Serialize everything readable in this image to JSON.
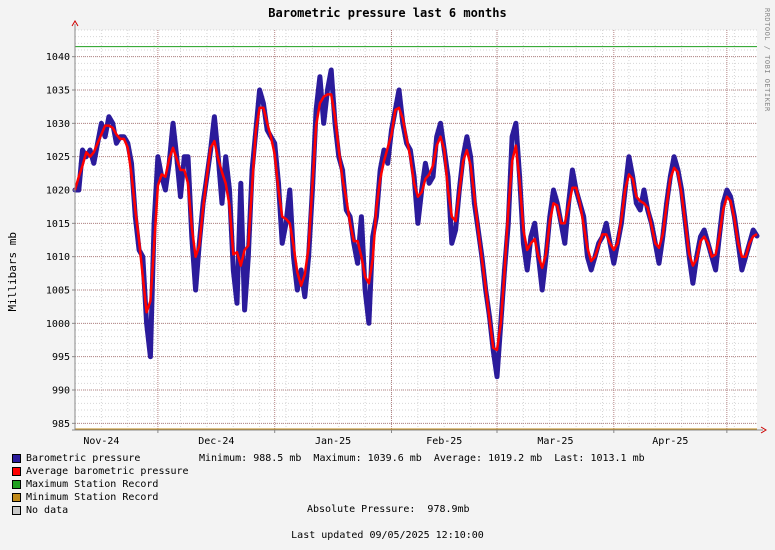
{
  "watermark": "RRDTOOL / TOBI OETIKER",
  "chart_data": {
    "type": "line",
    "title": "Barometric pressure last 6 months",
    "ylabel": "Millibars  mb",
    "ylim": [
      984,
      1044
    ],
    "yticks": [
      985,
      990,
      995,
      1000,
      1005,
      1010,
      1015,
      1020,
      1025,
      1030,
      1035,
      1040
    ],
    "xlabels": [
      "Nov-24",
      "Dec-24",
      "Jan-25",
      "Feb-25",
      "Mar-25",
      "Apr-25"
    ],
    "x_range": [
      "2024-11-09",
      "2025-05-09"
    ],
    "month_starts": [
      "2024-11-01",
      "2024-12-01",
      "2025-01-01",
      "2025-02-01",
      "2025-03-01",
      "2025-04-01",
      "2025-05-01"
    ],
    "grid": true,
    "max_station_record": 1041.5,
    "min_station_record": 984,
    "series": [
      {
        "name": "Barometric pressure",
        "color": "#2b1b9b",
        "points": [
          [
            "2024-11-09",
            1020
          ],
          [
            "2024-11-10",
            1020
          ],
          [
            "2024-11-11",
            1026
          ],
          [
            "2024-11-12",
            1025
          ],
          [
            "2024-11-13",
            1026
          ],
          [
            "2024-11-14",
            1024
          ],
          [
            "2024-11-15",
            1027
          ],
          [
            "2024-11-16",
            1030
          ],
          [
            "2024-11-17",
            1028
          ],
          [
            "2024-11-18",
            1031
          ],
          [
            "2024-11-19",
            1030
          ],
          [
            "2024-11-20",
            1027
          ],
          [
            "2024-11-21",
            1028
          ],
          [
            "2024-11-22",
            1028
          ],
          [
            "2024-11-23",
            1027
          ],
          [
            "2024-11-24",
            1024
          ],
          [
            "2024-11-25",
            1016
          ],
          [
            "2024-11-26",
            1011
          ],
          [
            "2024-11-27",
            1010
          ],
          [
            "2024-11-28",
            1000
          ],
          [
            "2024-11-29",
            995
          ],
          [
            "2024-11-30",
            1015
          ],
          [
            "2024-12-01",
            1025
          ],
          [
            "2024-12-02",
            1022
          ],
          [
            "2024-12-03",
            1020
          ],
          [
            "2024-12-04",
            1024
          ],
          [
            "2024-12-05",
            1030
          ],
          [
            "2024-12-06",
            1025
          ],
          [
            "2024-12-07",
            1019
          ],
          [
            "2024-12-08",
            1025
          ],
          [
            "2024-12-09",
            1025
          ],
          [
            "2024-12-10",
            1013
          ],
          [
            "2024-12-11",
            1005
          ],
          [
            "2024-12-12",
            1012
          ],
          [
            "2024-12-13",
            1018
          ],
          [
            "2024-12-14",
            1022
          ],
          [
            "2024-12-15",
            1026
          ],
          [
            "2024-12-16",
            1031
          ],
          [
            "2024-12-17",
            1025
          ],
          [
            "2024-12-18",
            1018
          ],
          [
            "2024-12-19",
            1025
          ],
          [
            "2024-12-20",
            1020
          ],
          [
            "2024-12-21",
            1008
          ],
          [
            "2024-12-22",
            1003
          ],
          [
            "2024-12-23",
            1021
          ],
          [
            "2024-12-24",
            1002
          ],
          [
            "2024-12-25",
            1010
          ],
          [
            "2024-12-26",
            1023
          ],
          [
            "2024-12-27",
            1029
          ],
          [
            "2024-12-28",
            1035
          ],
          [
            "2024-12-29",
            1033
          ],
          [
            "2024-12-30",
            1029
          ],
          [
            "2024-12-31",
            1028
          ],
          [
            "2025-01-01",
            1027
          ],
          [
            "2025-01-02",
            1021
          ],
          [
            "2025-01-03",
            1012
          ],
          [
            "2025-01-04",
            1015
          ],
          [
            "2025-01-05",
            1020
          ],
          [
            "2025-01-06",
            1010
          ],
          [
            "2025-01-07",
            1005
          ],
          [
            "2025-01-08",
            1008
          ],
          [
            "2025-01-09",
            1004
          ],
          [
            "2025-01-10",
            1010
          ],
          [
            "2025-01-11",
            1020
          ],
          [
            "2025-01-12",
            1032
          ],
          [
            "2025-01-13",
            1037
          ],
          [
            "2025-01-14",
            1030
          ],
          [
            "2025-01-15",
            1035
          ],
          [
            "2025-01-16",
            1038
          ],
          [
            "2025-01-17",
            1030
          ],
          [
            "2025-01-18",
            1025
          ],
          [
            "2025-01-19",
            1023
          ],
          [
            "2025-01-20",
            1017
          ],
          [
            "2025-01-21",
            1016
          ],
          [
            "2025-01-22",
            1012
          ],
          [
            "2025-01-23",
            1009
          ],
          [
            "2025-01-24",
            1016
          ],
          [
            "2025-01-25",
            1005
          ],
          [
            "2025-01-26",
            1000
          ],
          [
            "2025-01-27",
            1013
          ],
          [
            "2025-01-28",
            1016
          ],
          [
            "2025-01-29",
            1023
          ],
          [
            "2025-01-30",
            1026
          ],
          [
            "2025-01-31",
            1024
          ],
          [
            "2025-02-01",
            1029
          ],
          [
            "2025-02-02",
            1032
          ],
          [
            "2025-02-03",
            1035
          ],
          [
            "2025-02-04",
            1030
          ],
          [
            "2025-02-05",
            1027
          ],
          [
            "2025-02-06",
            1026
          ],
          [
            "2025-02-07",
            1022
          ],
          [
            "2025-02-08",
            1015
          ],
          [
            "2025-02-09",
            1020
          ],
          [
            "2025-02-10",
            1024
          ],
          [
            "2025-02-11",
            1021
          ],
          [
            "2025-02-12",
            1022
          ],
          [
            "2025-02-13",
            1028
          ],
          [
            "2025-02-14",
            1030
          ],
          [
            "2025-02-15",
            1026
          ],
          [
            "2025-02-16",
            1022
          ],
          [
            "2025-02-17",
            1012
          ],
          [
            "2025-02-18",
            1014
          ],
          [
            "2025-02-19",
            1020
          ],
          [
            "2025-02-20",
            1025
          ],
          [
            "2025-02-21",
            1028
          ],
          [
            "2025-02-22",
            1025
          ],
          [
            "2025-02-23",
            1018
          ],
          [
            "2025-02-24",
            1014
          ],
          [
            "2025-02-25",
            1010
          ],
          [
            "2025-02-26",
            1005
          ],
          [
            "2025-02-27",
            1001
          ],
          [
            "2025-02-28",
            996
          ],
          [
            "2025-03-01",
            992
          ],
          [
            "2025-03-02",
            1000
          ],
          [
            "2025-03-03",
            1008
          ],
          [
            "2025-03-04",
            1015
          ],
          [
            "2025-03-05",
            1028
          ],
          [
            "2025-03-06",
            1030
          ],
          [
            "2025-03-07",
            1022
          ],
          [
            "2025-03-08",
            1012
          ],
          [
            "2025-03-09",
            1008
          ],
          [
            "2025-03-10",
            1013
          ],
          [
            "2025-03-11",
            1015
          ],
          [
            "2025-03-12",
            1010
          ],
          [
            "2025-03-13",
            1005
          ],
          [
            "2025-03-14",
            1010
          ],
          [
            "2025-03-15",
            1016
          ],
          [
            "2025-03-16",
            1020
          ],
          [
            "2025-03-17",
            1018
          ],
          [
            "2025-03-18",
            1015
          ],
          [
            "2025-03-19",
            1012
          ],
          [
            "2025-03-20",
            1018
          ],
          [
            "2025-03-21",
            1023
          ],
          [
            "2025-03-22",
            1020
          ],
          [
            "2025-03-23",
            1018
          ],
          [
            "2025-03-24",
            1016
          ],
          [
            "2025-03-25",
            1010
          ],
          [
            "2025-03-26",
            1008
          ],
          [
            "2025-03-27",
            1010
          ],
          [
            "2025-03-28",
            1012
          ],
          [
            "2025-03-29",
            1013
          ],
          [
            "2025-03-30",
            1015
          ],
          [
            "2025-03-31",
            1012
          ],
          [
            "2025-04-01",
            1009
          ],
          [
            "2025-04-02",
            1012
          ],
          [
            "2025-04-03",
            1015
          ],
          [
            "2025-04-04",
            1020
          ],
          [
            "2025-04-05",
            1025
          ],
          [
            "2025-04-06",
            1022
          ],
          [
            "2025-04-07",
            1018
          ],
          [
            "2025-04-08",
            1017
          ],
          [
            "2025-04-09",
            1020
          ],
          [
            "2025-04-10",
            1017
          ],
          [
            "2025-04-11",
            1015
          ],
          [
            "2025-04-12",
            1012
          ],
          [
            "2025-04-13",
            1009
          ],
          [
            "2025-04-14",
            1013
          ],
          [
            "2025-04-15",
            1018
          ],
          [
            "2025-04-16",
            1022
          ],
          [
            "2025-04-17",
            1025
          ],
          [
            "2025-04-18",
            1023
          ],
          [
            "2025-04-19",
            1020
          ],
          [
            "2025-04-20",
            1015
          ],
          [
            "2025-04-21",
            1010
          ],
          [
            "2025-04-22",
            1006
          ],
          [
            "2025-04-23",
            1010
          ],
          [
            "2025-04-24",
            1013
          ],
          [
            "2025-04-25",
            1014
          ],
          [
            "2025-04-26",
            1012
          ],
          [
            "2025-04-27",
            1010
          ],
          [
            "2025-04-28",
            1008
          ],
          [
            "2025-04-29",
            1013
          ],
          [
            "2025-04-30",
            1018
          ],
          [
            "2025-05-01",
            1020
          ],
          [
            "2025-05-02",
            1019
          ],
          [
            "2025-05-03",
            1016
          ],
          [
            "2025-05-04",
            1012
          ],
          [
            "2025-05-05",
            1008
          ],
          [
            "2025-05-06",
            1010
          ],
          [
            "2025-05-07",
            1012
          ],
          [
            "2025-05-08",
            1014
          ],
          [
            "2025-05-09",
            1013.1
          ]
        ]
      },
      {
        "name": "Average barometric pressure",
        "color": "#ff0000"
      }
    ],
    "legend": [
      {
        "label": "Barometric pressure",
        "color": "#2b1b9b"
      },
      {
        "label": "Average barometric pressure",
        "color": "#ff0000"
      },
      {
        "label": "Maximum Station Record",
        "color": "#1f9f1f"
      },
      {
        "label": "Minimum Station Record",
        "color": "#c08a1a"
      },
      {
        "label": "No data",
        "color": "#c8c8c8"
      }
    ],
    "stats": {
      "minimum_label": "Minimum:",
      "minimum_value": "988.5 mb",
      "maximum_label": "Maximum:",
      "maximum_value": "1039.6 mb",
      "average_label": "Average:",
      "average_value": "1019.2 mb",
      "last_label": "Last:",
      "last_value": "1013.1 mb"
    },
    "absolute_pressure_label": "Absolute Pressure:",
    "absolute_pressure_value": "978.9mb"
  },
  "footer": {
    "last_updated_label": "Last updated",
    "last_updated_value": "09/05/2025 12:10:00"
  }
}
